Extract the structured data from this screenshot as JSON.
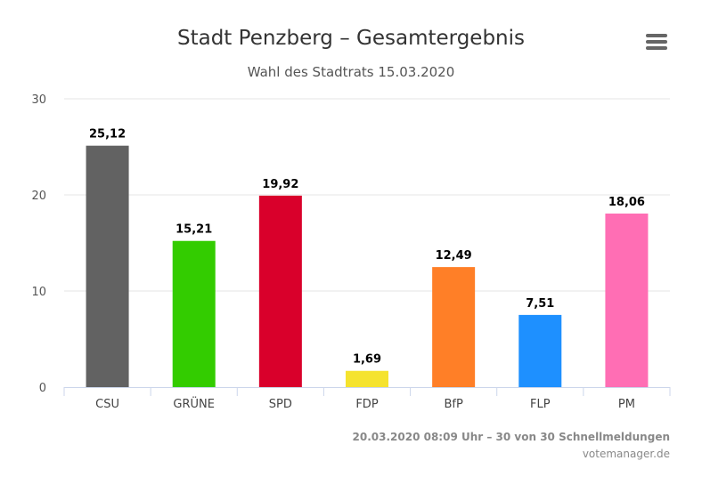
{
  "chart_data": {
    "type": "bar",
    "title": "Stadt Penzberg – Gesamtergebnis",
    "subtitle": "Wahl des Stadtrats 15.03.2020",
    "categories": [
      "CSU",
      "GRÜNE",
      "SPD",
      "FDP",
      "BfP",
      "FLP",
      "PM"
    ],
    "values": [
      25.12,
      15.21,
      19.92,
      1.69,
      12.49,
      7.51,
      18.06
    ],
    "value_labels": [
      "25,12",
      "15,21",
      "19,92",
      "1,69",
      "12,49",
      "7,51",
      "18,06"
    ],
    "colors": [
      "#626262",
      "#33cc00",
      "#d9002b",
      "#f5e32e",
      "#ff7f27",
      "#1e90ff",
      "#ff6eb4"
    ],
    "ylim": [
      0,
      30
    ],
    "yticks": [
      0,
      10,
      20,
      30
    ],
    "grid": true,
    "legend": "none"
  },
  "menu": {
    "icon": "hamburger-menu-icon"
  },
  "footer": {
    "line1": "20.03.2020 08:09 Uhr – 30 von 30 Schnellmeldungen",
    "line2": "votemanager.de"
  }
}
